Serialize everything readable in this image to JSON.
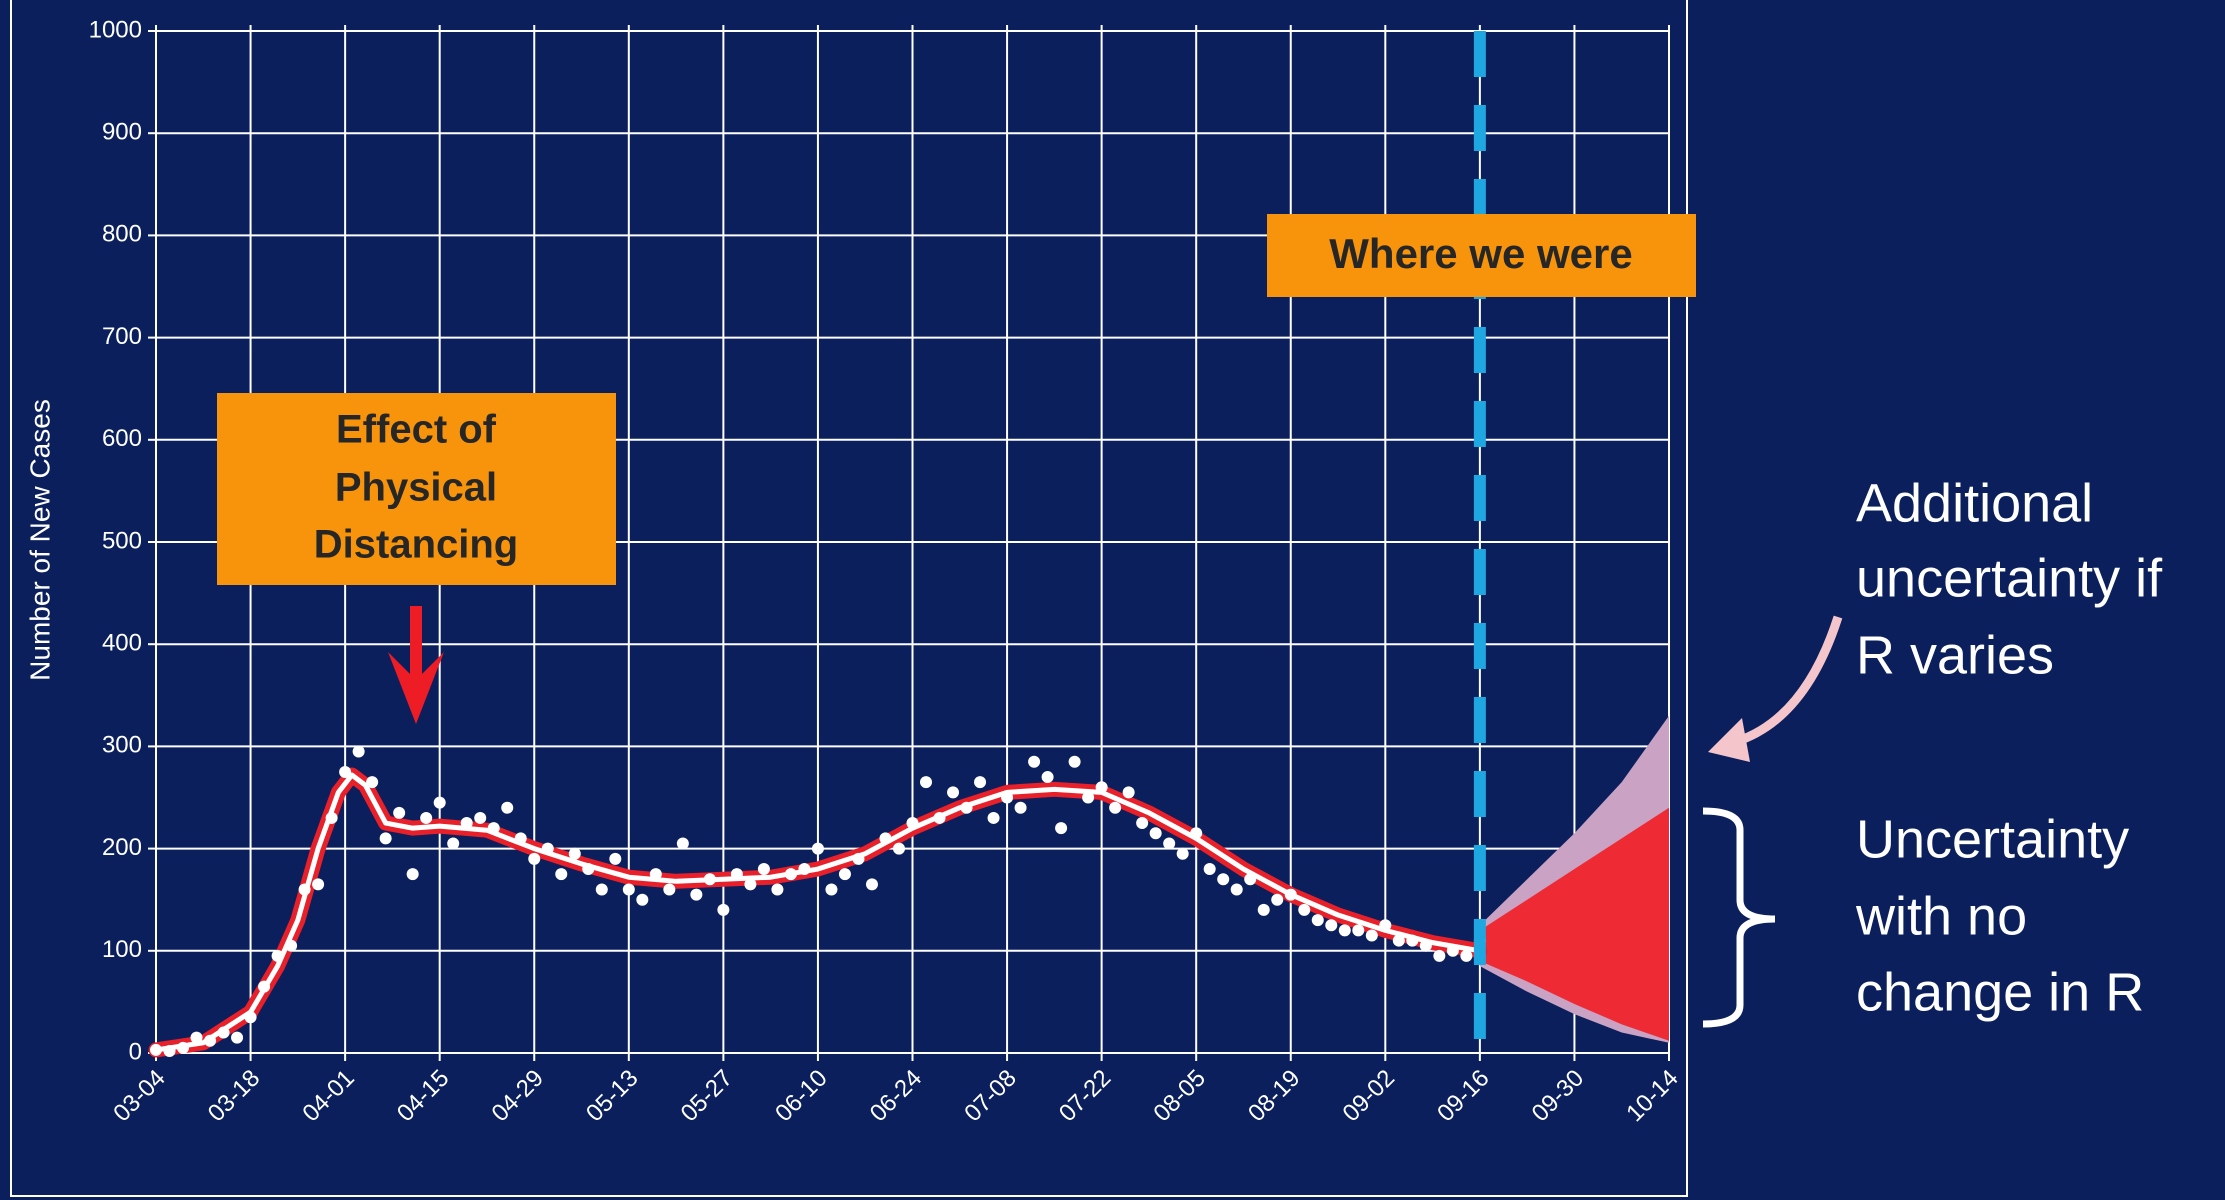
{
  "chart_data": {
    "type": "line",
    "y_label": "Number of New Cases",
    "xlim": [
      0,
      224
    ],
    "xticks": [
      {
        "value": 0,
        "label": "03-04"
      },
      {
        "value": 14,
        "label": "03-18"
      },
      {
        "value": 28,
        "label": "04-01"
      },
      {
        "value": 42,
        "label": "04-15"
      },
      {
        "value": 56,
        "label": "04-29"
      },
      {
        "value": 70,
        "label": "05-13"
      },
      {
        "value": 84,
        "label": "05-27"
      },
      {
        "value": 98,
        "label": "06-10"
      },
      {
        "value": 112,
        "label": "06-24"
      },
      {
        "value": 126,
        "label": "07-08"
      },
      {
        "value": 140,
        "label": "07-22"
      },
      {
        "value": 154,
        "label": "08-05"
      },
      {
        "value": 168,
        "label": "08-19"
      },
      {
        "value": 182,
        "label": "09-02"
      },
      {
        "value": 196,
        "label": "09-16"
      },
      {
        "value": 210,
        "label": "09-30"
      },
      {
        "value": 224,
        "label": "10-14"
      }
    ],
    "ylim": [
      0,
      1000
    ],
    "yticks": [
      0,
      100,
      200,
      300,
      400,
      500,
      600,
      700,
      800,
      900,
      1000
    ],
    "grid": true,
    "marker_x": 196,
    "marker_color": "#1ea7e1",
    "bands": [
      {
        "color": "#c9a2c4",
        "x": [
          196,
          203,
          210,
          217,
          224
        ],
        "lower": [
          85,
          60,
          38,
          20,
          10
        ],
        "upper": [
          125,
          170,
          215,
          265,
          330
        ]
      },
      {
        "color": "#ee2b35",
        "x": [
          196,
          203,
          210,
          217,
          224
        ],
        "lower": [
          90,
          70,
          48,
          28,
          12
        ],
        "upper": [
          120,
          150,
          180,
          210,
          240
        ]
      }
    ],
    "fit": {
      "color": "#ffffff",
      "outline": "#e8202a",
      "x": [
        0,
        7,
        14,
        18,
        21,
        24,
        27,
        29,
        31,
        34,
        38,
        42,
        49,
        56,
        63,
        70,
        77,
        84,
        91,
        98,
        105,
        112,
        119,
        126,
        133,
        140,
        147,
        154,
        161,
        168,
        175,
        182,
        189,
        196
      ],
      "values": [
        3,
        10,
        40,
        85,
        130,
        200,
        255,
        272,
        262,
        225,
        220,
        222,
        218,
        200,
        185,
        172,
        168,
        170,
        172,
        180,
        195,
        220,
        240,
        255,
        258,
        255,
        235,
        210,
        180,
        155,
        135,
        120,
        108,
        100
      ]
    },
    "points": {
      "color": "#ffffff",
      "x": [
        0,
        2,
        4,
        6,
        8,
        10,
        12,
        14,
        16,
        18,
        20,
        22,
        24,
        26,
        28,
        30,
        32,
        34,
        36,
        38,
        40,
        42,
        44,
        46,
        48,
        50,
        52,
        54,
        56,
        58,
        60,
        62,
        64,
        66,
        68,
        70,
        72,
        74,
        76,
        78,
        80,
        82,
        84,
        86,
        88,
        90,
        92,
        94,
        96,
        98,
        100,
        102,
        104,
        106,
        108,
        110,
        112,
        114,
        116,
        118,
        120,
        122,
        124,
        126,
        128,
        130,
        132,
        134,
        136,
        138,
        140,
        142,
        144,
        146,
        148,
        150,
        152,
        154,
        156,
        158,
        160,
        162,
        164,
        166,
        168,
        170,
        172,
        174,
        176,
        178,
        180,
        182,
        184,
        186,
        188,
        190,
        192,
        194,
        196
      ],
      "values": [
        3,
        2,
        5,
        15,
        12,
        20,
        15,
        35,
        65,
        95,
        105,
        160,
        165,
        230,
        275,
        295,
        265,
        210,
        235,
        175,
        230,
        245,
        205,
        225,
        230,
        220,
        240,
        210,
        190,
        200,
        175,
        195,
        180,
        160,
        190,
        160,
        150,
        175,
        160,
        205,
        155,
        170,
        140,
        175,
        165,
        180,
        160,
        175,
        180,
        200,
        160,
        175,
        190,
        165,
        210,
        200,
        225,
        265,
        230,
        255,
        240,
        265,
        230,
        250,
        240,
        285,
        270,
        220,
        285,
        250,
        260,
        240,
        255,
        225,
        215,
        205,
        195,
        215,
        180,
        170,
        160,
        170,
        140,
        150,
        155,
        140,
        130,
        125,
        120,
        120,
        115,
        125,
        110,
        110,
        105,
        95,
        100,
        95,
        110
      ]
    },
    "annotations": {
      "distancing": [
        "Effect of",
        "Physical",
        "Distancing"
      ],
      "where": "Where we were",
      "varies": [
        "Additional",
        "uncertainty if",
        "R varies"
      ],
      "no_change": [
        "Uncertainty",
        "with no",
        "change in R"
      ]
    }
  }
}
